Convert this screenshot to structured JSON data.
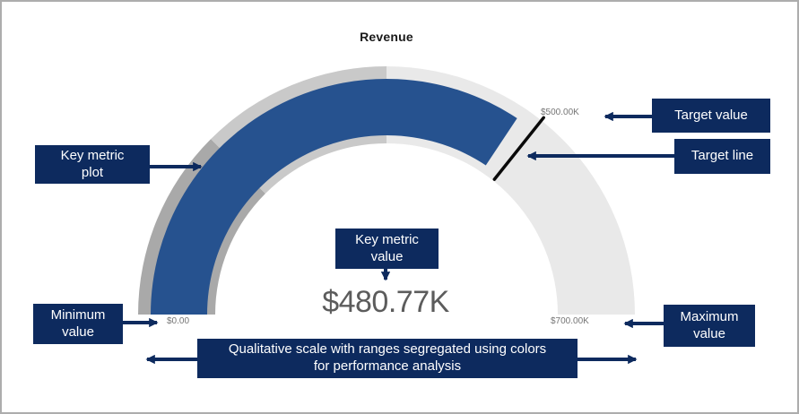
{
  "chart_data": {
    "type": "gauge",
    "title": "Revenue",
    "min": 0,
    "max": 700000,
    "value": 480770,
    "target": 500000,
    "value_label": "$480.77K",
    "min_label": "$0.00",
    "max_label": "$700.00K",
    "target_label": "$500.00K",
    "value_color": "#26528f",
    "target_line_color": "#0a0a0a",
    "qualitative_ranges": [
      {
        "from": 0,
        "to": 175000,
        "color": "#a9a9a9"
      },
      {
        "from": 175000,
        "to": 350000,
        "color": "#c9c9c9"
      },
      {
        "from": 350000,
        "to": 700000,
        "color": "#e9e9e9"
      }
    ],
    "layout_hints": {
      "shape": "semicircle",
      "start_angle_deg": 180,
      "end_angle_deg": 0
    }
  },
  "annotations": {
    "key_metric_plot": "Key metric plot",
    "target_value": "Target value",
    "target_line": "Target line",
    "key_metric_value": "Key metric value",
    "minimum_value": "Minimum value",
    "maximum_value": "Maximum value",
    "qualitative_scale": "Qualitative scale with ranges segregated using colors for performance analysis"
  },
  "colors": {
    "annotation_background": "#0d2a5e",
    "annotation_text": "#ffffff",
    "arrow": "#0d2a5e",
    "title_text": "#1a1a1a",
    "value_text": "#5c5c5c",
    "axis_label_text": "#757575",
    "page_border": "#adadad"
  }
}
